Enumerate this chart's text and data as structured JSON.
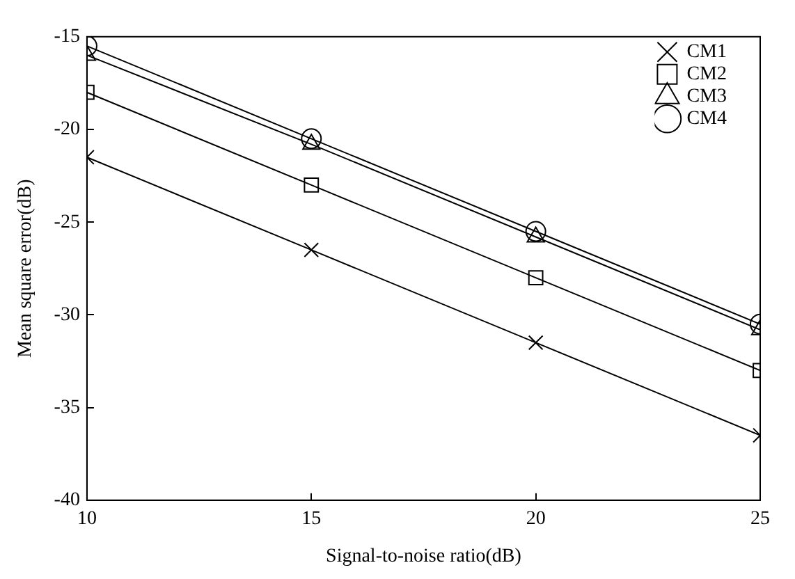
{
  "chart_data": {
    "type": "line",
    "xlabel": "Signal-to-noise ratio(dB)",
    "ylabel": "Mean square error(dB)",
    "x": [
      10,
      15,
      20,
      25
    ],
    "series": [
      {
        "name": "CM1",
        "color": "#000000",
        "marker": "cross",
        "values": [
          -21.5,
          -26.5,
          -31.5,
          -36.5
        ]
      },
      {
        "name": "CM2",
        "color": "#000000",
        "marker": "square",
        "values": [
          -18,
          -23,
          -28,
          -33
        ]
      },
      {
        "name": "CM3",
        "color": "#000000",
        "marker": "triangle",
        "values": [
          -16,
          -20.8,
          -25.8,
          -30.8
        ]
      },
      {
        "name": "CM4",
        "color": "#000000",
        "marker": "circle",
        "values": [
          -15.5,
          -20.5,
          -25.5,
          -30.5
        ]
      }
    ],
    "xlim": [
      10,
      25
    ],
    "xticks": [
      10,
      15,
      20,
      25
    ],
    "ylim": [
      -40,
      -15
    ],
    "yticks": [
      -40,
      -35,
      -30,
      -25,
      -20,
      -15
    ],
    "grid": false,
    "legend": "top right",
    "line_style": "solid"
  }
}
